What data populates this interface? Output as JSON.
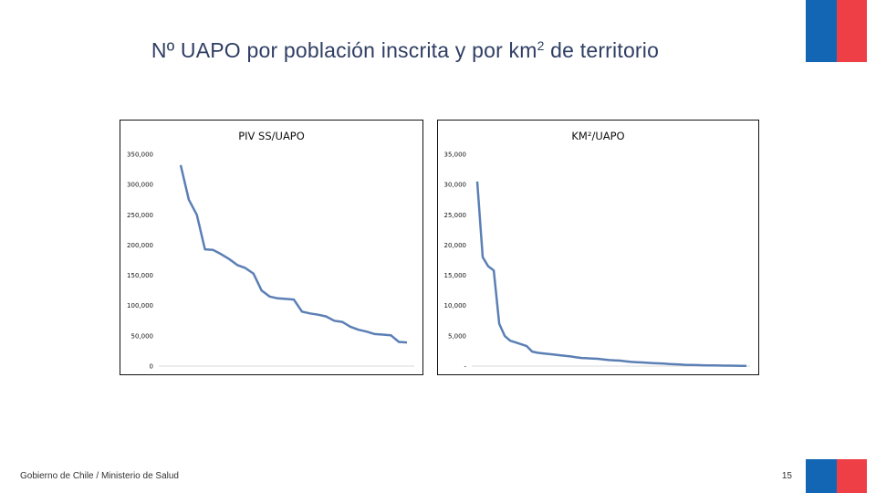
{
  "title_main": "Nº UAPO por población inscrita y por km",
  "title_sup": "2",
  "title_end": " de territorio",
  "footer": "Gobierno de Chile / Ministerio de Salud",
  "page_number": "15",
  "colors": {
    "line": "#5b7fb5",
    "flag_blue": "#1366b3",
    "flag_red": "#ee3f46",
    "title": "#2f3e63"
  },
  "chart_data": [
    {
      "type": "line",
      "title": "PIV SS/UAPO",
      "ylim": [
        0,
        350000
      ],
      "ytick_values": [
        0,
        50000,
        100000,
        150000,
        200000,
        250000,
        300000,
        350000
      ],
      "ytick_labels": [
        "0",
        "50,000",
        "100,000",
        "150,000",
        "200,000",
        "250,000",
        "300,000",
        "350,000"
      ],
      "grid": false,
      "series": [
        {
          "values": [
            332000,
            275000,
            250000,
            193000,
            192000,
            185000,
            177000,
            167000,
            162000,
            153000,
            125000,
            115000,
            112000,
            111000,
            110000,
            90000,
            87000,
            85000,
            82000,
            75000,
            73000,
            65000,
            60000,
            57000,
            53000,
            52000,
            51000,
            40000,
            39000
          ]
        }
      ]
    },
    {
      "type": "line",
      "title": "KM²/UAPO",
      "ylim": [
        0,
        35000
      ],
      "ytick_values": [
        0,
        5000,
        10000,
        15000,
        20000,
        25000,
        30000,
        35000
      ],
      "ytick_labels": [
        "-",
        "5,000",
        "10,000",
        "15,000",
        "20,000",
        "25,000",
        "30,000",
        "35,000"
      ],
      "grid": false,
      "series": [
        {
          "values": [
            30500,
            18000,
            16500,
            15800,
            7000,
            5000,
            4200,
            3900,
            3600,
            3300,
            2400,
            2200,
            2100,
            2000,
            1900,
            1800,
            1700,
            1600,
            1450,
            1350,
            1300,
            1250,
            1200,
            1100,
            1000,
            950,
            900,
            800,
            700,
            650,
            600,
            550,
            500,
            450,
            400,
            350,
            300,
            250,
            200,
            180,
            160,
            140,
            120,
            100,
            90,
            80,
            70,
            60,
            50,
            40
          ]
        }
      ]
    }
  ]
}
